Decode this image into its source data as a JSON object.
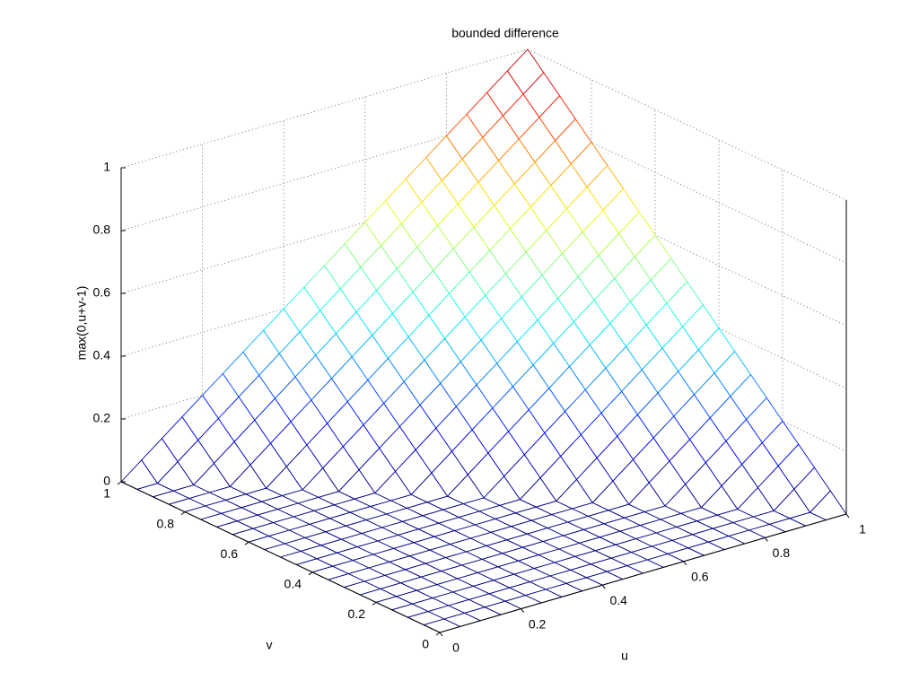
{
  "chart_data": {
    "type": "mesh",
    "title": "bounded difference",
    "xlabel": "u",
    "ylabel": "v",
    "zlabel": "max(0,u+v-1)",
    "x": [
      0,
      0.05,
      0.1,
      0.15,
      0.2,
      0.25,
      0.3,
      0.35,
      0.4,
      0.45,
      0.5,
      0.55,
      0.6,
      0.65,
      0.7,
      0.75,
      0.8,
      0.85,
      0.9,
      0.95,
      1
    ],
    "y": [
      0,
      0.05,
      0.1,
      0.15,
      0.2,
      0.25,
      0.3,
      0.35,
      0.4,
      0.45,
      0.5,
      0.55,
      0.6,
      0.65,
      0.7,
      0.75,
      0.8,
      0.85,
      0.9,
      0.95,
      1
    ],
    "z": [
      [
        0,
        0,
        0,
        0,
        0,
        0,
        0,
        0,
        0,
        0,
        0,
        0,
        0,
        0,
        0,
        0,
        0,
        0,
        0,
        0,
        0
      ],
      [
        0,
        0,
        0,
        0,
        0,
        0,
        0,
        0,
        0,
        0,
        0,
        0,
        0,
        0,
        0,
        0,
        0,
        0,
        0,
        0,
        0.05
      ],
      [
        0,
        0,
        0,
        0,
        0,
        0,
        0,
        0,
        0,
        0,
        0,
        0,
        0,
        0,
        0,
        0,
        0,
        0,
        0,
        0.05,
        0.1
      ],
      [
        0,
        0,
        0,
        0,
        0,
        0,
        0,
        0,
        0,
        0,
        0,
        0,
        0,
        0,
        0,
        0,
        0,
        0,
        0.05,
        0.1,
        0.15
      ],
      [
        0,
        0,
        0,
        0,
        0,
        0,
        0,
        0,
        0,
        0,
        0,
        0,
        0,
        0,
        0,
        0,
        0,
        0.05,
        0.1,
        0.15,
        0.2
      ],
      [
        0,
        0,
        0,
        0,
        0,
        0,
        0,
        0,
        0,
        0,
        0,
        0,
        0,
        0,
        0,
        0,
        0.05,
        0.1,
        0.15,
        0.2,
        0.25
      ],
      [
        0,
        0,
        0,
        0,
        0,
        0,
        0,
        0,
        0,
        0,
        0,
        0,
        0,
        0,
        0,
        0.05,
        0.1,
        0.15,
        0.2,
        0.25,
        0.3
      ],
      [
        0,
        0,
        0,
        0,
        0,
        0,
        0,
        0,
        0,
        0,
        0,
        0,
        0,
        0,
        0.05,
        0.1,
        0.15,
        0.2,
        0.25,
        0.3,
        0.35
      ],
      [
        0,
        0,
        0,
        0,
        0,
        0,
        0,
        0,
        0,
        0,
        0,
        0,
        0,
        0.05,
        0.1,
        0.15,
        0.2,
        0.25,
        0.3,
        0.35,
        0.4
      ],
      [
        0,
        0,
        0,
        0,
        0,
        0,
        0,
        0,
        0,
        0,
        0,
        0,
        0.05,
        0.1,
        0.15,
        0.2,
        0.25,
        0.3,
        0.35,
        0.4,
        0.45
      ],
      [
        0,
        0,
        0,
        0,
        0,
        0,
        0,
        0,
        0,
        0,
        0,
        0.05,
        0.1,
        0.15,
        0.2,
        0.25,
        0.3,
        0.35,
        0.4,
        0.45,
        0.5
      ],
      [
        0,
        0,
        0,
        0,
        0,
        0,
        0,
        0,
        0,
        0,
        0.05,
        0.1,
        0.15,
        0.2,
        0.25,
        0.3,
        0.35,
        0.4,
        0.45,
        0.5,
        0.55
      ],
      [
        0,
        0,
        0,
        0,
        0,
        0,
        0,
        0,
        0,
        0.05,
        0.1,
        0.15,
        0.2,
        0.25,
        0.3,
        0.35,
        0.4,
        0.45,
        0.5,
        0.55,
        0.6
      ],
      [
        0,
        0,
        0,
        0,
        0,
        0,
        0,
        0,
        0.05,
        0.1,
        0.15,
        0.2,
        0.25,
        0.3,
        0.35,
        0.4,
        0.45,
        0.5,
        0.55,
        0.6,
        0.65
      ],
      [
        0,
        0,
        0,
        0,
        0,
        0,
        0,
        0.05,
        0.1,
        0.15,
        0.2,
        0.25,
        0.3,
        0.35,
        0.4,
        0.45,
        0.5,
        0.55,
        0.6,
        0.65,
        0.7
      ],
      [
        0,
        0,
        0,
        0,
        0,
        0,
        0.05,
        0.1,
        0.15,
        0.2,
        0.25,
        0.3,
        0.35,
        0.4,
        0.45,
        0.5,
        0.55,
        0.6,
        0.65,
        0.7,
        0.75
      ],
      [
        0,
        0,
        0,
        0,
        0,
        0.05,
        0.1,
        0.15,
        0.2,
        0.25,
        0.3,
        0.35,
        0.4,
        0.45,
        0.5,
        0.55,
        0.6,
        0.65,
        0.7,
        0.75,
        0.8
      ],
      [
        0,
        0,
        0,
        0,
        0.05,
        0.1,
        0.15,
        0.2,
        0.25,
        0.3,
        0.35,
        0.4,
        0.45,
        0.5,
        0.55,
        0.6,
        0.65,
        0.7,
        0.75,
        0.8,
        0.85
      ],
      [
        0,
        0,
        0,
        0.05,
        0.1,
        0.15,
        0.2,
        0.25,
        0.3,
        0.35,
        0.4,
        0.45,
        0.5,
        0.55,
        0.6,
        0.65,
        0.7,
        0.75,
        0.8,
        0.85,
        0.9
      ],
      [
        0,
        0,
        0.05,
        0.1,
        0.15,
        0.2,
        0.25,
        0.3,
        0.35,
        0.4,
        0.45,
        0.5,
        0.55,
        0.6,
        0.65,
        0.7,
        0.75,
        0.8,
        0.85,
        0.9,
        0.95
      ],
      [
        0,
        0.05,
        0.1,
        0.15,
        0.2,
        0.25,
        0.3,
        0.35,
        0.4,
        0.45,
        0.5,
        0.55,
        0.6,
        0.65,
        0.7,
        0.75,
        0.8,
        0.85,
        0.9,
        0.95,
        1
      ]
    ],
    "xlim": [
      0,
      1
    ],
    "ylim": [
      0,
      1
    ],
    "zlim": [
      0,
      1
    ],
    "xticks": [
      0,
      0.2,
      0.4,
      0.6,
      0.8,
      1
    ],
    "yticks": [
      0,
      0.2,
      0.4,
      0.6,
      0.8,
      1
    ],
    "zticks": [
      0,
      0.2,
      0.4,
      0.6,
      0.8,
      1
    ],
    "colormap": "jet",
    "grid": true
  }
}
